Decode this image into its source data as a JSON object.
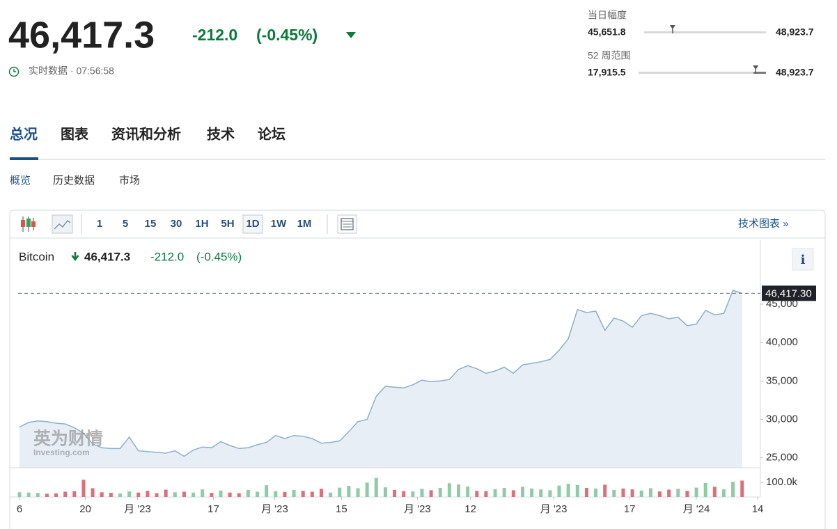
{
  "header": {
    "price": "46,417.3",
    "change": "-212.0",
    "change_pct": "(-0.45%)",
    "realtime": "实时数据 · 07:56:58"
  },
  "ranges": {
    "day": {
      "label": "当日幅度",
      "low": "45,651.8",
      "high": "48,923.7"
    },
    "week52": {
      "label": "52 周范围",
      "low": "17,915.5",
      "high": "48,923.7"
    }
  },
  "tabs": {
    "items": [
      "总况",
      "图表",
      "资讯和分析",
      "技术",
      "论坛"
    ],
    "active": 0
  },
  "subtabs": {
    "items": [
      "概览",
      "历史数据",
      "市场"
    ],
    "active": 0
  },
  "toolbar": {
    "intervals": [
      "1",
      "5",
      "15",
      "30",
      "1H",
      "5H",
      "1D",
      "1W",
      "1M"
    ],
    "active": 6,
    "link": "技术图表 »"
  },
  "watermark": {
    "brand": "英为财情",
    "site": "Investing.com"
  },
  "chart_data": {
    "type": "area",
    "title": "Bitcoin",
    "price": "46,417.3",
    "change": "-212.0",
    "change_pct": "(-0.45%)",
    "color": "#8eafc6",
    "fill": "#e7eef6",
    "grid": false,
    "price_line": {
      "value": 46417.3,
      "label": "46,417.30"
    },
    "xlim": [
      0,
      81
    ],
    "xticks": [
      {
        "value": 0,
        "label": "6"
      },
      {
        "value": 7.2,
        "label": "20"
      },
      {
        "value": 12.9,
        "label": "月 '23"
      },
      {
        "value": 21.2,
        "label": "17"
      },
      {
        "value": 27.9,
        "label": "月 '23"
      },
      {
        "value": 35.2,
        "label": "15"
      },
      {
        "value": 43.5,
        "label": "月 '23"
      },
      {
        "value": 49.3,
        "label": "12"
      },
      {
        "value": 58.4,
        "label": "月 '23"
      },
      {
        "value": 66.7,
        "label": "17"
      },
      {
        "value": 74,
        "label": "月 '24"
      },
      {
        "value": 80.7,
        "label": "14"
      }
    ],
    "ylim": [
      23700,
      47900
    ],
    "yticks": [
      {
        "value": 25000,
        "label": "25,000"
      },
      {
        "value": 30000,
        "label": "30,000"
      },
      {
        "value": 35000,
        "label": "35,000"
      },
      {
        "value": 40000,
        "label": "40,000"
      },
      {
        "value": 45000,
        "label": "45,000"
      }
    ],
    "values": [
      29000,
      29600,
      29800,
      29700,
      29500,
      29400,
      28900,
      28200,
      26800,
      26300,
      26200,
      26200,
      27700,
      25900,
      25800,
      25700,
      25600,
      25900,
      25200,
      26000,
      26400,
      26300,
      27100,
      26600,
      26200,
      26300,
      26700,
      27000,
      27900,
      27500,
      27900,
      27800,
      27500,
      26900,
      27000,
      27200,
      28400,
      29700,
      30000,
      33000,
      34300,
      34200,
      34100,
      34500,
      35100,
      34900,
      35000,
      35200,
      36500,
      37000,
      36600,
      36000,
      36300,
      36800,
      36000,
      37100,
      37300,
      37500,
      37800,
      39000,
      40500,
      44300,
      43900,
      44100,
      41600,
      43200,
      42800,
      42000,
      43500,
      43800,
      43500,
      43100,
      43300,
      42200,
      42400,
      44200,
      43600,
      43800,
      46800,
      46417.3
    ],
    "volume": {
      "up_color": "#8fcba6",
      "down_color": "#db6f7a",
      "ylim": [
        0,
        138000
      ],
      "yticks": [
        {
          "value": 100000,
          "label": "100.0k"
        }
      ],
      "values": [
        32000,
        30000,
        28000,
        22000,
        25000,
        36000,
        40000,
        118000,
        60000,
        32000,
        28000,
        24000,
        38000,
        30000,
        42000,
        26000,
        50000,
        32000,
        36000,
        30000,
        52000,
        28000,
        44000,
        30000,
        26000,
        48000,
        36000,
        80000,
        40000,
        34000,
        48000,
        42000,
        36000,
        56000,
        30000,
        64000,
        76000,
        60000,
        98000,
        130000,
        66000,
        48000,
        40000,
        38000,
        56000,
        46000,
        62000,
        94000,
        86000,
        72000,
        42000,
        40000,
        54000,
        62000,
        46000,
        70000,
        58000,
        52000,
        46000,
        78000,
        90000,
        82000,
        62000,
        58000,
        84000,
        48000,
        58000,
        52000,
        44000,
        60000,
        38000,
        50000,
        56000,
        42000,
        64000,
        96000,
        70000,
        52000,
        104000,
        112000
      ]
    }
  }
}
